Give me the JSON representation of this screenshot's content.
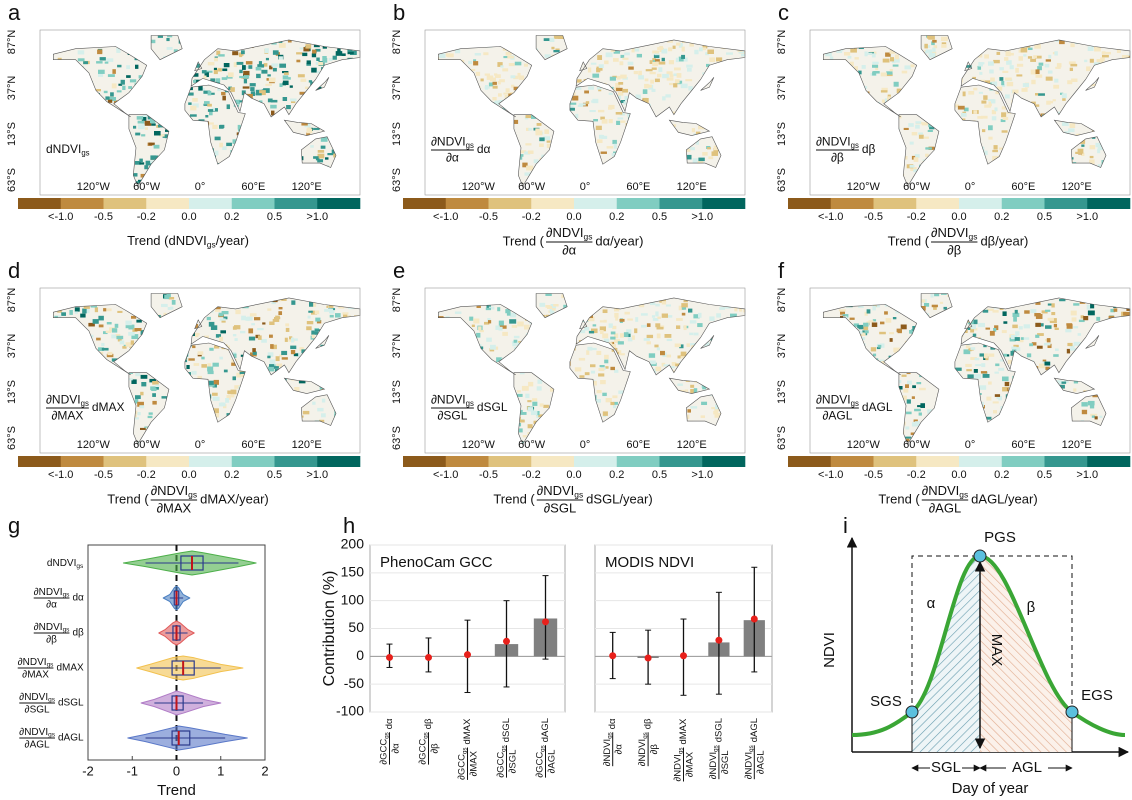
{
  "figure": {
    "maps": [
      {
        "panel": "a",
        "inset": {
          "text": "dNDVI",
          "subscript": "gs"
        },
        "colorbar_title": {
          "prefix": "Trend (dNDVI",
          "subscript": "gs",
          "suffix": "/year)"
        }
      },
      {
        "panel": "b",
        "inset": {
          "numerator": "∂NDVI",
          "subscript": "gs",
          "denominator": "∂α",
          "suffix": "dα"
        },
        "colorbar_title": {
          "prefix": "Trend (",
          "numerator": "∂NDVI",
          "subscript": "gs",
          "denominator": "∂α",
          "suffix": "dα/year)"
        }
      },
      {
        "panel": "c",
        "inset": {
          "numerator": "∂NDVI",
          "subscript": "gs",
          "denominator": "∂β",
          "suffix": "dβ"
        },
        "colorbar_title": {
          "prefix": "Trend (",
          "numerator": "∂NDVI",
          "subscript": "gs",
          "denominator": "∂β",
          "suffix": "dβ/year)"
        }
      },
      {
        "panel": "d",
        "inset": {
          "numerator": "∂NDVI",
          "subscript": "gs",
          "denominator": "∂MAX",
          "suffix": "dMAX"
        },
        "colorbar_title": {
          "prefix": "Trend (",
          "numerator": "∂NDVI",
          "subscript": "gs",
          "denominator": "∂MAX",
          "suffix": "dMAX/year)"
        }
      },
      {
        "panel": "e",
        "inset": {
          "numerator": "∂NDVI",
          "subscript": "gs",
          "denominator": "∂SGL",
          "suffix": "dSGL"
        },
        "colorbar_title": {
          "prefix": "Trend (",
          "numerator": "∂NDVI",
          "subscript": "gs",
          "denominator": "∂SGL",
          "suffix": "dSGL/year)"
        }
      },
      {
        "panel": "f",
        "inset": {
          "numerator": "∂NDVI",
          "subscript": "gs",
          "denominator": "∂AGL",
          "suffix": "dAGL"
        },
        "colorbar_title": {
          "prefix": "Trend (",
          "numerator": "∂NDVI",
          "subscript": "gs",
          "denominator": "∂AGL",
          "suffix": "dAGL/year)"
        }
      }
    ],
    "lat_labels": [
      "87°N",
      "37°N",
      "13°S",
      "63°S"
    ],
    "lon_labels": [
      "120°W",
      "60°W",
      "0°",
      "60°E",
      "120°E"
    ],
    "colorbar": {
      "colors": [
        "#8c5a1b",
        "#bf8a3f",
        "#dfc27d",
        "#f6e8c3",
        "#d5efeb",
        "#80cdc1",
        "#35978f",
        "#01665e"
      ],
      "labels": [
        "<-1.0",
        "-0.5",
        "-0.2",
        "0.0",
        "0.2",
        "0.5",
        ">1.0"
      ]
    }
  },
  "chart_data": [
    {
      "type": "violin",
      "panel": "g",
      "categories": [
        {
          "text": "dNDVI",
          "subscript": "gs"
        },
        {
          "numerator": "∂NDVI",
          "subscript": "gs",
          "denominator": "∂α",
          "suffix": "dα"
        },
        {
          "numerator": "∂NDVI",
          "subscript": "gs",
          "denominator": "∂β",
          "suffix": "dβ"
        },
        {
          "numerator": "∂NDVI",
          "subscript": "gs",
          "denominator": "∂MAX",
          "suffix": "dMAX"
        },
        {
          "numerator": "∂NDVI",
          "subscript": "gs",
          "denominator": "∂SGL",
          "suffix": "dSGL"
        },
        {
          "numerator": "∂NDVI",
          "subscript": "gs",
          "denominator": "∂AGL",
          "suffix": "dAGL"
        }
      ],
      "colors": [
        "#4daf4a",
        "#4a7fc1",
        "#e05a5a",
        "#f2c14e",
        "#b07cc6",
        "#5a78c8"
      ],
      "min": [
        -1.2,
        -0.3,
        -0.4,
        -0.9,
        -0.8,
        -1.1
      ],
      "whisker_low": [
        -0.7,
        -0.15,
        -0.25,
        -0.6,
        -0.5,
        -0.7
      ],
      "q1": [
        0.1,
        -0.05,
        -0.08,
        -0.1,
        -0.1,
        -0.1
      ],
      "median": [
        0.35,
        0.0,
        0.0,
        0.15,
        0.0,
        0.05
      ],
      "q3": [
        0.6,
        0.05,
        0.08,
        0.4,
        0.15,
        0.3
      ],
      "whisker_high": [
        1.4,
        0.15,
        0.25,
        1.0,
        0.6,
        1.1
      ],
      "max": [
        1.8,
        0.3,
        0.4,
        1.5,
        1.0,
        1.6
      ],
      "xlabel": "Trend",
      "xlim": [
        -2,
        2
      ],
      "xticks": [
        -2,
        -1,
        0,
        1,
        2
      ]
    },
    {
      "type": "bar",
      "panel": "h",
      "title": "PhenoCam GCC",
      "ylabel": "Contribution (%)",
      "categories": [
        {
          "numerator": "∂GCC",
          "subscript": "gs",
          "denominator": "∂α",
          "suffix": "dα"
        },
        {
          "numerator": "∂GCC",
          "subscript": "gs",
          "denominator": "∂β",
          "suffix": "dβ"
        },
        {
          "numerator": "∂GCC",
          "subscript": "gs",
          "denominator": "∂MAX",
          "suffix": "dMAX"
        },
        {
          "numerator": "∂GCC",
          "subscript": "gs",
          "denominator": "∂SGL",
          "suffix": "dSGL"
        },
        {
          "numerator": "∂GCC",
          "subscript": "gs",
          "denominator": "∂AGL",
          "suffix": "dAGL"
        }
      ],
      "values": [
        0,
        0,
        0,
        22,
        68
      ],
      "points": [
        -2,
        -2,
        3,
        27,
        62
      ],
      "error_low": [
        -20,
        -28,
        -65,
        -55,
        -5
      ],
      "error_high": [
        22,
        33,
        65,
        100,
        145
      ],
      "color": "#808080",
      "point_color": "#e8201b",
      "ylim": [
        -100,
        200
      ],
      "yticks": [
        -100,
        -50,
        0,
        50,
        100,
        150,
        200
      ],
      "grid": true,
      "show_tick_labels": true
    },
    {
      "type": "bar",
      "title": "MODIS NDVI",
      "categories": [
        {
          "numerator": "∂NDVI",
          "subscript": "gs",
          "denominator": "∂α",
          "suffix": "dα"
        },
        {
          "numerator": "∂NDVI",
          "subscript": "gs",
          "denominator": "∂β",
          "suffix": "dβ"
        },
        {
          "numerator": "∂NDVI",
          "subscript": "gs",
          "denominator": "∂MAX",
          "suffix": "dMAX"
        },
        {
          "numerator": "∂NDVI",
          "subscript": "gs",
          "denominator": "∂SGL",
          "suffix": "dSGL"
        },
        {
          "numerator": "∂NDVI",
          "subscript": "gs",
          "denominator": "∂AGL",
          "suffix": "dAGL"
        }
      ],
      "values": [
        0,
        -3,
        0,
        25,
        65
      ],
      "points": [
        1,
        -3,
        1,
        29,
        67
      ],
      "error_low": [
        -40,
        -50,
        -70,
        -68,
        -28
      ],
      "error_high": [
        43,
        47,
        67,
        115,
        160
      ],
      "color": "#808080",
      "point_color": "#e8201b",
      "ylim": [
        -100,
        200
      ],
      "yticks": [
        -100,
        -50,
        0,
        50,
        100,
        150,
        200
      ],
      "grid": true,
      "show_tick_labels": false
    }
  ],
  "diagram": {
    "panel": "i",
    "ylabel": "NDVI",
    "xlabel": "Day of year",
    "peak": "PGS",
    "start": "SGS",
    "end": "EGS",
    "left_angle": "α",
    "right_angle": "β",
    "amplitude": "MAX",
    "green_up": "SGL",
    "senescence": "AGL"
  }
}
